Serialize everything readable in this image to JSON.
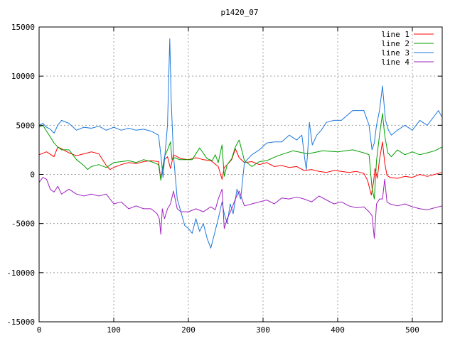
{
  "chart_data": {
    "type": "line",
    "title": "p1420_07",
    "xlabel": "",
    "ylabel": "",
    "xlim": [
      0,
      540
    ],
    "ylim": [
      -15000,
      15000
    ],
    "xticks": [
      0,
      100,
      200,
      300,
      400,
      500
    ],
    "yticks": [
      -15000,
      -10000,
      -5000,
      0,
      5000,
      10000,
      15000
    ],
    "grid": true,
    "legend_position": "top-right",
    "series": [
      {
        "name": "line 1",
        "color": "#ff0000",
        "x": [
          0,
          10,
          20,
          25,
          30,
          40,
          50,
          60,
          70,
          80,
          90,
          95,
          100,
          110,
          120,
          130,
          140,
          150,
          160,
          163,
          165,
          168,
          172,
          176,
          180,
          190,
          200,
          210,
          220,
          230,
          240,
          245,
          248,
          252,
          258,
          263,
          268,
          275,
          285,
          295,
          305,
          315,
          325,
          335,
          345,
          355,
          365,
          375,
          385,
          395,
          405,
          415,
          425,
          435,
          440,
          445,
          448,
          450,
          453,
          456,
          460,
          463,
          466,
          470,
          480,
          490,
          500,
          510,
          520,
          530,
          540
        ],
        "y": [
          2000,
          2300,
          1800,
          2800,
          2600,
          2200,
          1900,
          2100,
          2300,
          2100,
          900,
          500,
          700,
          1000,
          1200,
          1100,
          1300,
          1400,
          1300,
          -500,
          300,
          1500,
          1800,
          600,
          2000,
          1600,
          1500,
          1700,
          1500,
          1400,
          800,
          -500,
          700,
          1000,
          1500,
          2600,
          1700,
          1200,
          1300,
          1000,
          1200,
          800,
          900,
          700,
          800,
          400,
          500,
          300,
          200,
          400,
          300,
          200,
          300,
          100,
          -600,
          -2100,
          -800,
          600,
          -400,
          1500,
          3300,
          1200,
          -100,
          -300,
          -400,
          -200,
          -300,
          0,
          -200,
          0,
          200
        ]
      },
      {
        "name": "line 2",
        "color": "#00a000",
        "x": [
          0,
          5,
          10,
          15,
          20,
          25,
          30,
          40,
          50,
          60,
          65,
          70,
          80,
          90,
          100,
          110,
          120,
          130,
          140,
          150,
          160,
          163,
          165,
          168,
          172,
          176,
          178,
          182,
          188,
          195,
          205,
          215,
          225,
          232,
          236,
          240,
          245,
          248,
          252,
          258,
          263,
          268,
          275,
          285,
          295,
          305,
          320,
          340,
          360,
          380,
          400,
          420,
          435,
          442,
          446,
          449,
          452,
          456,
          460,
          463,
          467,
          472,
          480,
          490,
          500,
          510,
          520,
          530,
          540
        ],
        "y": [
          4800,
          5000,
          4400,
          3800,
          3200,
          2800,
          2500,
          2500,
          1500,
          900,
          500,
          800,
          1000,
          700,
          1200,
          1300,
          1400,
          1200,
          1500,
          1300,
          1000,
          -600,
          500,
          1800,
          2500,
          3300,
          1500,
          1700,
          1500,
          1500,
          1500,
          2700,
          1600,
          1400,
          2000,
          1200,
          3000,
          -200,
          1000,
          1600,
          2800,
          3500,
          1400,
          800,
          1300,
          1400,
          1900,
          2400,
          2100,
          2400,
          2300,
          2500,
          2200,
          2000,
          -1400,
          -2500,
          1400,
          4000,
          6200,
          4000,
          2200,
          1800,
          2500,
          2000,
          2300,
          2000,
          2200,
          2400,
          2800
        ]
      },
      {
        "name": "line 3",
        "color": "#1e78dc",
        "x": [
          0,
          5,
          10,
          15,
          20,
          25,
          30,
          40,
          50,
          60,
          70,
          80,
          90,
          100,
          110,
          120,
          130,
          140,
          150,
          160,
          163,
          166,
          168,
          172,
          175,
          177,
          180,
          185,
          190,
          195,
          200,
          205,
          210,
          215,
          220,
          225,
          230,
          235,
          240,
          245,
          248,
          252,
          256,
          260,
          265,
          270,
          275,
          285,
          295,
          305,
          315,
          325,
          335,
          345,
          352,
          356,
          358,
          360,
          362,
          366,
          372,
          378,
          385,
          395,
          405,
          420,
          435,
          442,
          446,
          449,
          452,
          456,
          460,
          464,
          468,
          472,
          480,
          490,
          500,
          510,
          520,
          530,
          535,
          540
        ],
        "y": [
          5000,
          5200,
          4800,
          4600,
          4200,
          5000,
          5500,
          5200,
          4500,
          4800,
          4700,
          4900,
          4500,
          4800,
          4500,
          4700,
          4500,
          4600,
          4400,
          4000,
          2000,
          -300,
          1500,
          5000,
          13800,
          7500,
          2000,
          -2500,
          -3800,
          -5200,
          -5500,
          -6000,
          -4500,
          -5800,
          -5000,
          -6500,
          -7500,
          -6000,
          -4500,
          -2800,
          -4000,
          -5000,
          -3000,
          -4000,
          -1500,
          -2500,
          1200,
          2000,
          2500,
          3200,
          3300,
          3300,
          4000,
          3500,
          4000,
          1500,
          500,
          2500,
          5300,
          3000,
          4000,
          4500,
          5300,
          5500,
          5500,
          6500,
          6500,
          5000,
          2500,
          3200,
          5000,
          6500,
          9000,
          5500,
          4500,
          4000,
          4500,
          5000,
          4500,
          5500,
          5000,
          6000,
          6500,
          5800
        ]
      },
      {
        "name": "line 4",
        "color": "#a020c0",
        "x": [
          0,
          5,
          10,
          15,
          20,
          25,
          30,
          40,
          50,
          60,
          70,
          80,
          90,
          100,
          110,
          120,
          130,
          140,
          150,
          158,
          161,
          163,
          165,
          168,
          172,
          176,
          180,
          185,
          190,
          200,
          210,
          220,
          230,
          236,
          240,
          245,
          248,
          252,
          258,
          263,
          268,
          275,
          285,
          295,
          305,
          315,
          325,
          335,
          345,
          355,
          365,
          375,
          385,
          395,
          405,
          415,
          425,
          435,
          442,
          446,
          449,
          452,
          456,
          460,
          463,
          466,
          470,
          480,
          490,
          500,
          510,
          520,
          530,
          540
        ],
        "y": [
          -800,
          -300,
          -500,
          -1500,
          -1800,
          -1200,
          -2000,
          -1500,
          -2000,
          -2200,
          -2000,
          -2200,
          -2000,
          -3000,
          -2800,
          -3500,
          -3200,
          -3500,
          -3500,
          -4000,
          -4500,
          -6100,
          -3500,
          -4500,
          -3500,
          -3000,
          -1700,
          -3500,
          -3800,
          -3800,
          -3500,
          -3800,
          -3300,
          -3600,
          -2500,
          -1500,
          -5500,
          -4500,
          -3500,
          -2500,
          -1700,
          -3200,
          -3000,
          -2800,
          -2600,
          -3000,
          -2400,
          -2500,
          -2300,
          -2500,
          -2800,
          -2200,
          -2600,
          -3000,
          -2800,
          -3200,
          -3400,
          -3300,
          -3800,
          -4200,
          -6500,
          -3000,
          -2500,
          -2500,
          -500,
          -2800,
          -3000,
          -3200,
          -3000,
          -3300,
          -3500,
          -3600,
          -3400,
          -3200
        ]
      }
    ]
  }
}
